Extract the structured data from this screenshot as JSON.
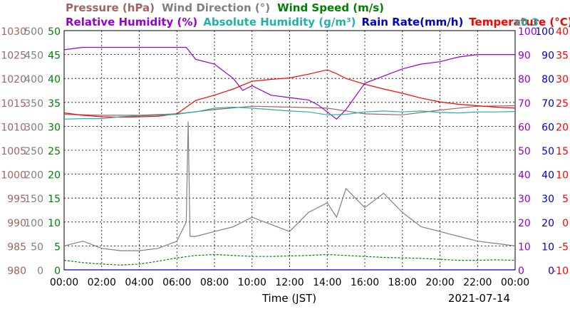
{
  "chart_data": {
    "type": "line",
    "title_rows": {
      "row1": [
        {
          "text": "Pressure (hPa)",
          "color": "#a06464"
        },
        {
          "text": "Wind Direction (°)",
          "color": "#808080"
        },
        {
          "text": "Wind Speed (m/s)",
          "color": "#008000"
        }
      ],
      "row2": [
        {
          "text": "Relative Humidity (%)",
          "color": "#9400d3"
        },
        {
          "text": "Absolute Humidity (g/m³)",
          "color": "#20b2aa"
        },
        {
          "text": "Rain Rate(mm/h)",
          "color": "#0000cd"
        },
        {
          "text": "Temperature (°C)",
          "color": "#ff0000"
        }
      ],
      "rain_scale_note": {
        "text": "x0.3",
        "color": "#20b2aa"
      }
    },
    "xlabel": "Time (JST)",
    "date": "2021-07-14",
    "x_ticks": [
      "00:00",
      "02:00",
      "04:00",
      "06:00",
      "08:00",
      "10:00",
      "12:00",
      "14:00",
      "16:00",
      "18:00",
      "20:00",
      "22:00",
      "00:00"
    ],
    "x_range_hours": [
      0,
      24
    ],
    "grid": true,
    "left_axes": {
      "pressure": {
        "color": "#a06464",
        "ticks": [
          "1030",
          "1025",
          "1020",
          "1015",
          "1010",
          "1005",
          "1000",
          "995",
          "990",
          "985",
          "980"
        ],
        "range": [
          980,
          1030
        ]
      },
      "wind_dir": {
        "color": "#808080",
        "ticks": [
          "500",
          "450",
          "400",
          "350",
          "300",
          "250",
          "200",
          "150",
          "100",
          "50",
          "0"
        ],
        "range": [
          0,
          500
        ]
      },
      "wind_speed": {
        "color": "#008000",
        "ticks": [
          "50",
          "45",
          "40",
          "35",
          "30",
          "25",
          "20",
          "15",
          "10",
          "5",
          "0"
        ],
        "range": [
          0,
          50
        ]
      }
    },
    "right_axes": {
      "humidity": {
        "color": "#9400d3",
        "ticks": [
          "100",
          "90",
          "80",
          "70",
          "60",
          "50",
          "40",
          "30",
          "20",
          "10",
          "0"
        ],
        "range": [
          0,
          100
        ]
      },
      "rain": {
        "color": "#0000cd",
        "ticks": [
          "100",
          "90",
          "80",
          "70",
          "60",
          "50",
          "40",
          "30",
          "20",
          "10",
          "0"
        ],
        "range": [
          0,
          100
        ]
      },
      "temperature": {
        "color": "#ff0000",
        "ticks": [
          "40",
          "35",
          "30",
          "25",
          "20",
          "15",
          "10",
          "5",
          "0",
          "-5",
          "-10"
        ],
        "range": [
          -10,
          40
        ]
      }
    },
    "series": [
      {
        "name": "Pressure (hPa)",
        "color": "#a06464",
        "axis": "pressure",
        "points": [
          [
            0,
            1012.5
          ],
          [
            2,
            1012.3
          ],
          [
            4,
            1012.3
          ],
          [
            6,
            1012.6
          ],
          [
            8,
            1013.5
          ],
          [
            10,
            1014.2
          ],
          [
            12,
            1014.0
          ],
          [
            14,
            1013.8
          ],
          [
            16,
            1012.6
          ],
          [
            18,
            1012.4
          ],
          [
            20,
            1013.4
          ],
          [
            22,
            1014.2
          ],
          [
            24,
            1014.3
          ]
        ]
      },
      {
        "name": "Temperature (°C)",
        "color": "#ff0000",
        "axis": "temperature",
        "points": [
          [
            0,
            22.8
          ],
          [
            1,
            22.3
          ],
          [
            2,
            22.0
          ],
          [
            3,
            21.9
          ],
          [
            4,
            22.0
          ],
          [
            5,
            22.1
          ],
          [
            6,
            22.6
          ],
          [
            6.5,
            24.0
          ],
          [
            7,
            25.4
          ],
          [
            8,
            26.5
          ],
          [
            9,
            27.8
          ],
          [
            9.5,
            28.6
          ],
          [
            10,
            29.4
          ],
          [
            11,
            29.8
          ],
          [
            12,
            30.1
          ],
          [
            13,
            30.9
          ],
          [
            14,
            31.8
          ],
          [
            14.5,
            31.0
          ],
          [
            15,
            30.0
          ],
          [
            16,
            28.8
          ],
          [
            17,
            27.8
          ],
          [
            18,
            26.9
          ],
          [
            19,
            25.9
          ],
          [
            20,
            25.1
          ],
          [
            21,
            24.6
          ],
          [
            22,
            24.3
          ],
          [
            23,
            24.0
          ],
          [
            24,
            23.8
          ]
        ]
      },
      {
        "name": "Relative Humidity (%)",
        "color": "#9400d3",
        "axis": "humidity",
        "points": [
          [
            0,
            92
          ],
          [
            1,
            93
          ],
          [
            2,
            93
          ],
          [
            3,
            93
          ],
          [
            4,
            93
          ],
          [
            5,
            93
          ],
          [
            6.5,
            93
          ],
          [
            7,
            88
          ],
          [
            8,
            86
          ],
          [
            9,
            80
          ],
          [
            9.5,
            75
          ],
          [
            10,
            77
          ],
          [
            11,
            73
          ],
          [
            12,
            72
          ],
          [
            13,
            71
          ],
          [
            13.5,
            69
          ],
          [
            14,
            66
          ],
          [
            14.5,
            63
          ],
          [
            15,
            67
          ],
          [
            16,
            78
          ],
          [
            17,
            81
          ],
          [
            18,
            84
          ],
          [
            19,
            86
          ],
          [
            20,
            87
          ],
          [
            21,
            89
          ],
          [
            22,
            90
          ],
          [
            23,
            90
          ],
          [
            24,
            90
          ]
        ]
      },
      {
        "name": "Absolute Humidity (g/m³)",
        "color": "#20b2aa",
        "axis": "wind_speed",
        "points": [
          [
            0,
            31.5
          ],
          [
            1,
            31.6
          ],
          [
            2,
            31.6
          ],
          [
            3,
            32.0
          ],
          [
            4,
            32.2
          ],
          [
            5,
            32.3
          ],
          [
            6,
            32.5
          ],
          [
            6.5,
            32.8
          ],
          [
            7,
            33.0
          ],
          [
            8,
            33.8
          ],
          [
            9,
            34.0
          ],
          [
            10,
            33.8
          ],
          [
            11,
            33.5
          ],
          [
            12,
            33.2
          ],
          [
            13,
            33.0
          ],
          [
            14,
            32.4
          ],
          [
            15,
            32.5
          ],
          [
            16,
            33.0
          ],
          [
            17,
            33.2
          ],
          [
            18,
            33.0
          ],
          [
            19,
            33.2
          ],
          [
            20,
            32.9
          ],
          [
            21,
            32.8
          ],
          [
            22,
            33.0
          ],
          [
            23,
            33.0
          ],
          [
            24,
            33.1
          ]
        ]
      },
      {
        "name": "Wind Direction (°)",
        "color": "#808080",
        "axis": "wind_dir",
        "points": [
          [
            0,
            50
          ],
          [
            1,
            60
          ],
          [
            2,
            45
          ],
          [
            3,
            40
          ],
          [
            4,
            40
          ],
          [
            5,
            45
          ],
          [
            6,
            60
          ],
          [
            6.5,
            100
          ],
          [
            6.6,
            310
          ],
          [
            6.7,
            70
          ],
          [
            7,
            70
          ],
          [
            8,
            80
          ],
          [
            9,
            90
          ],
          [
            10,
            110
          ],
          [
            11,
            95
          ],
          [
            12,
            80
          ],
          [
            13,
            120
          ],
          [
            14,
            140
          ],
          [
            14.5,
            110
          ],
          [
            15,
            170
          ],
          [
            16,
            130
          ],
          [
            17,
            160
          ],
          [
            18,
            120
          ],
          [
            19,
            90
          ],
          [
            20,
            80
          ],
          [
            21,
            70
          ],
          [
            22,
            60
          ],
          [
            23,
            55
          ],
          [
            24,
            50
          ]
        ]
      },
      {
        "name": "Wind Speed (m/s)",
        "color": "#008000",
        "axis": "wind_speed",
        "points": [
          [
            0,
            2.0
          ],
          [
            1,
            1.5
          ],
          [
            2,
            1.2
          ],
          [
            3,
            1.0
          ],
          [
            4,
            1.2
          ],
          [
            5,
            1.8
          ],
          [
            6,
            2.5
          ],
          [
            7,
            3.0
          ],
          [
            8,
            3.2
          ],
          [
            9,
            3.0
          ],
          [
            10,
            2.8
          ],
          [
            11,
            2.8
          ],
          [
            12,
            2.9
          ],
          [
            13,
            3.0
          ],
          [
            14,
            3.2
          ],
          [
            15,
            3.0
          ],
          [
            16,
            2.8
          ],
          [
            17,
            2.6
          ],
          [
            18,
            2.5
          ],
          [
            19,
            2.4
          ],
          [
            20,
            2.2
          ],
          [
            21,
            2.0
          ],
          [
            22,
            2.0
          ],
          [
            23,
            2.1
          ],
          [
            24,
            2.0
          ]
        ]
      },
      {
        "name": "Rain Rate(mm/h)",
        "color": "#0000cd",
        "axis": "rain",
        "points": [
          [
            0,
            0
          ],
          [
            24,
            0
          ]
        ]
      }
    ]
  }
}
